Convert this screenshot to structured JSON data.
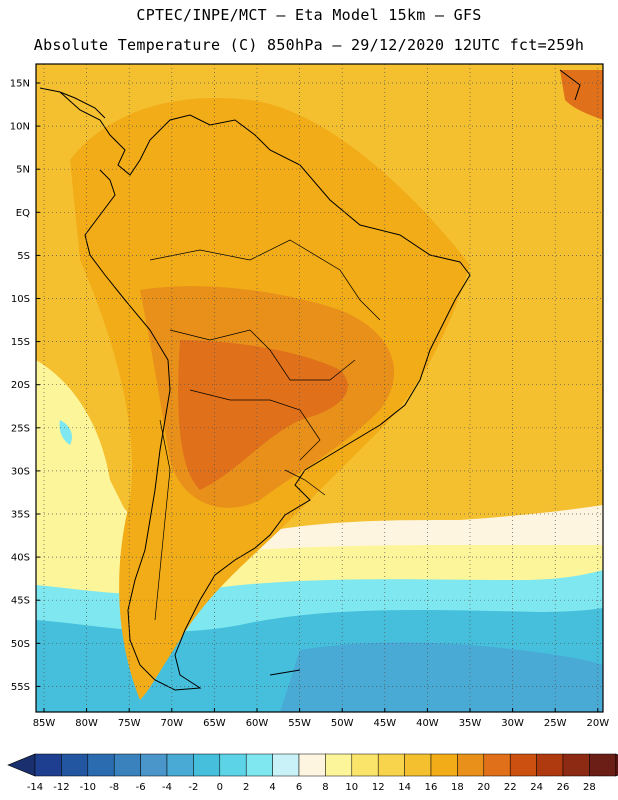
{
  "header": {
    "line1": "CPTEC/INPE/MCT –  Eta Model 15km – GFS",
    "line2": "Absolute Temperature (C) 850hPa – 29/12/2020 12UTC fct=259h"
  },
  "axes": {
    "lat_labels": [
      "15N",
      "10N",
      "5N",
      "EQ",
      "5S",
      "10S",
      "15S",
      "20S",
      "25S",
      "30S",
      "35S",
      "40S",
      "45S",
      "50S",
      "55S"
    ],
    "lon_labels": [
      "85W",
      "80W",
      "75W",
      "70W",
      "65W",
      "60W",
      "55W",
      "50W",
      "45W",
      "40W",
      "35W",
      "30W",
      "25W",
      "20W"
    ]
  },
  "colorbar": {
    "labels": [
      "-14",
      "-12",
      "-10",
      "-8",
      "-6",
      "-4",
      "-2",
      "0",
      "2",
      "4",
      "6",
      "8",
      "10",
      "12",
      "14",
      "16",
      "18",
      "20",
      "22",
      "24",
      "26",
      "28"
    ],
    "colors": [
      "#1e3f8f",
      "#2356a0",
      "#2b6cb0",
      "#3a82be",
      "#4a96cb",
      "#4aaad6",
      "#45bfdc",
      "#5cd3e6",
      "#7fe7ef",
      "#c8f2f7",
      "#fdf5e0",
      "#fdf59a",
      "#fbe46a",
      "#f8d44c",
      "#f4c030",
      "#f2ac18",
      "#e8901a",
      "#e0701a",
      "#cc5010",
      "#b03a10",
      "#8c2a14",
      "#6b1e16"
    ],
    "under_color": "#1a2f6e",
    "over_color": "#5a1414"
  },
  "field_colors": {
    "ocean_north": "#f4c030",
    "land_warm": "#f2ac18",
    "hot_core": "#e8901a",
    "very_hot": "#e0701a",
    "cool_ocean": "#fdf59a",
    "pale": "#fdf5e0",
    "cyan": "#7fe7ef",
    "mid_blue": "#45bfdc",
    "deep_blue": "#4aaad6"
  }
}
